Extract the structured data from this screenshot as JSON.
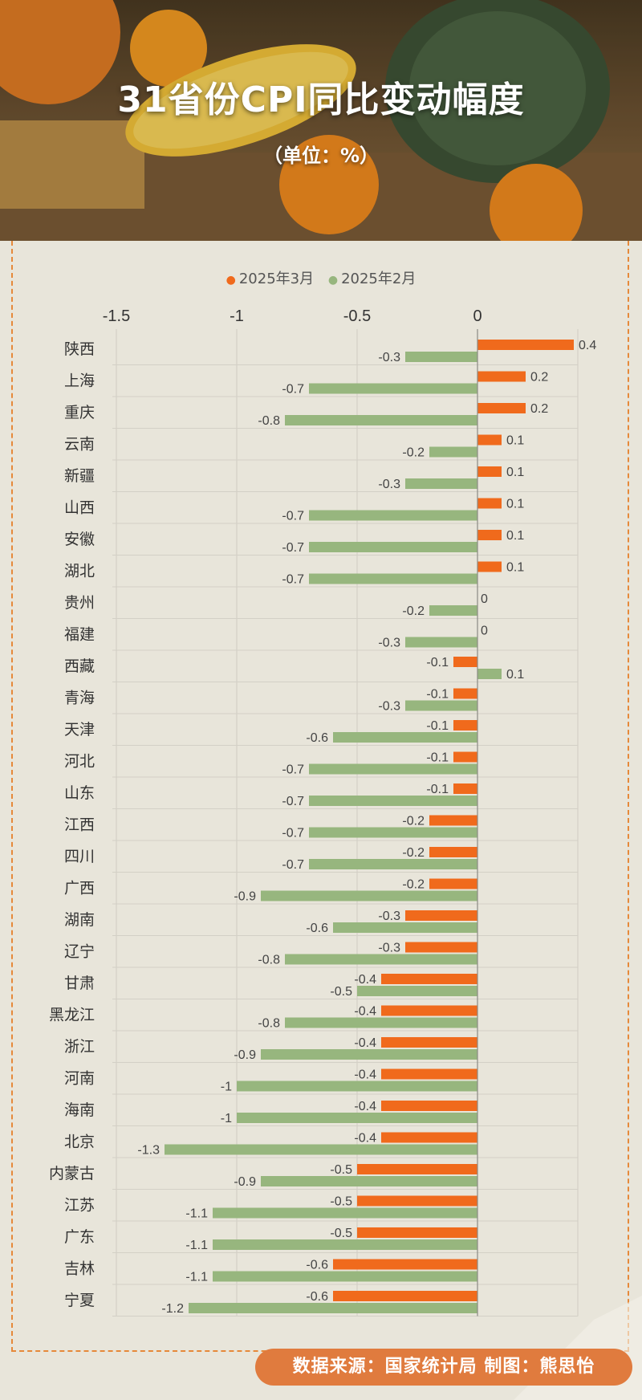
{
  "title": "31省份CPI同比变动幅度",
  "unit": "（单位：%）",
  "legend": [
    {
      "label": "2025年3月",
      "color": "#f06a1c"
    },
    {
      "label": "2025年2月",
      "color": "#97b67e"
    }
  ],
  "footer": "数据来源：国家统计局  制图：熊思怡",
  "chart_data": {
    "type": "bar",
    "orientation": "horizontal",
    "categories": [
      "陕西",
      "上海",
      "重庆",
      "云南",
      "新疆",
      "山西",
      "安徽",
      "湖北",
      "贵州",
      "福建",
      "西藏",
      "青海",
      "天津",
      "河北",
      "山东",
      "江西",
      "四川",
      "广西",
      "湖南",
      "辽宁",
      "甘肃",
      "黑龙江",
      "浙江",
      "河南",
      "海南",
      "北京",
      "内蒙古",
      "江苏",
      "广东",
      "吉林",
      "宁夏"
    ],
    "series": [
      {
        "name": "2025年3月",
        "color": "#f06a1c",
        "values": [
          0.4,
          0.2,
          0.2,
          0.1,
          0.1,
          0.1,
          0.1,
          0.1,
          0,
          0,
          -0.1,
          -0.1,
          -0.1,
          -0.1,
          -0.1,
          -0.2,
          -0.2,
          -0.2,
          -0.3,
          -0.3,
          -0.4,
          -0.4,
          -0.4,
          -0.4,
          -0.4,
          -0.4,
          -0.5,
          -0.5,
          -0.5,
          -0.6,
          -0.6
        ]
      },
      {
        "name": "2025年2月",
        "color": "#97b67e",
        "values": [
          -0.3,
          -0.7,
          -0.8,
          -0.2,
          -0.3,
          -0.7,
          -0.7,
          -0.7,
          -0.2,
          -0.3,
          0.1,
          -0.3,
          -0.6,
          -0.7,
          -0.7,
          -0.7,
          -0.7,
          -0.9,
          -0.6,
          -0.8,
          -0.5,
          -0.8,
          -0.9,
          -1,
          -1,
          -1.3,
          -0.9,
          -1.1,
          -1.1,
          -1.1,
          -1.2
        ]
      }
    ],
    "x_ticks": [
      "-1.5",
      "-1",
      "-0.5",
      "0"
    ],
    "xlim": [
      -1.5,
      0.4
    ],
    "legend_position": "top",
    "grid": "horizontal separators"
  }
}
